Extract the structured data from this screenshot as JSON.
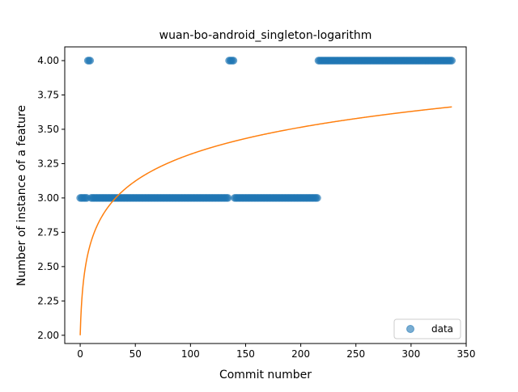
{
  "chart_data": {
    "type": "scatter",
    "title": "wuan-bo-android_singleton-logarithm",
    "xlabel": "Commit number",
    "ylabel": "Number of instance of a feature",
    "xlim": [
      -14,
      350
    ],
    "ylim": [
      1.94,
      4.1
    ],
    "x_ticks": [
      0,
      50,
      100,
      150,
      200,
      250,
      300,
      350
    ],
    "x_tick_labels": [
      "0",
      "50",
      "100",
      "150",
      "200",
      "250",
      "300",
      "350"
    ],
    "y_ticks": [
      2.0,
      2.25,
      2.5,
      2.75,
      3.0,
      3.25,
      3.5,
      3.75,
      4.0
    ],
    "y_tick_labels": [
      "2.00",
      "2.25",
      "2.50",
      "2.75",
      "3.00",
      "3.25",
      "3.50",
      "3.75",
      "4.00"
    ],
    "grid": false,
    "legend": {
      "position": "lower-right",
      "entries": [
        "data"
      ]
    },
    "series": [
      {
        "name": "data",
        "kind": "scatter",
        "color": "#1f77b4",
        "opacity": 0.6,
        "segments": [
          {
            "y": 3,
            "x_from": 0,
            "x_to": 6
          },
          {
            "y": 4,
            "x_from": 7,
            "x_to": 9
          },
          {
            "y": 3,
            "x_from": 10,
            "x_to": 134
          },
          {
            "y": 4,
            "x_from": 135,
            "x_to": 139
          },
          {
            "y": 3,
            "x_from": 140,
            "x_to": 215
          },
          {
            "y": 4,
            "x_from": 216,
            "x_to": 337
          }
        ]
      },
      {
        "name": "fit",
        "kind": "line",
        "color": "#ff7f0e",
        "function": "a + b*ln(x+1)",
        "params": {
          "a": 2.0,
          "b": 0.2856
        },
        "x_from": 0,
        "x_to": 337
      }
    ]
  }
}
